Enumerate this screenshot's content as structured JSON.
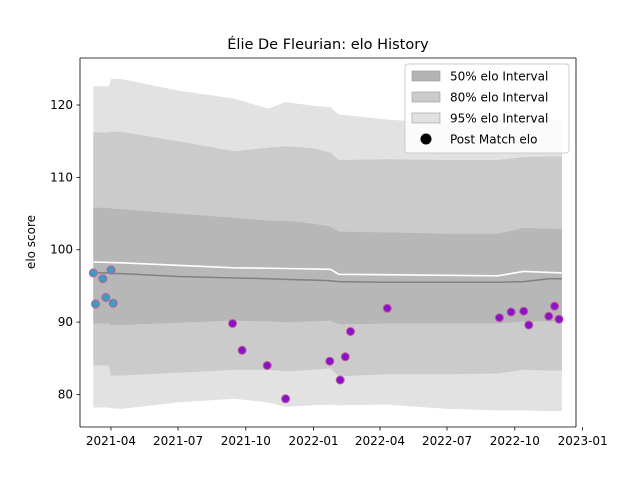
{
  "chart_data": {
    "type": "line",
    "title": "Élie De Fleurian: elo History",
    "xlabel": "",
    "ylabel": "elo score",
    "xlim": [
      "2021-02-18",
      "2022-12-23"
    ],
    "ylim": [
      75.5,
      126.5
    ],
    "x_ticks": [
      {
        "date": "2021-04-01",
        "label": "2021-04"
      },
      {
        "date": "2021-07-01",
        "label": "2021-07"
      },
      {
        "date": "2021-10-01",
        "label": "2021-10"
      },
      {
        "date": "2022-01-01",
        "label": "2022-01"
      },
      {
        "date": "2022-04-01",
        "label": "2022-04"
      },
      {
        "date": "2022-07-01",
        "label": "2022-07"
      },
      {
        "date": "2022-10-01",
        "label": "2022-10"
      },
      {
        "date": "2023-01-01",
        "label": "2023-01"
      }
    ],
    "y_ticks": [
      80,
      90,
      100,
      110,
      120
    ],
    "grid": false,
    "legend": {
      "placement": "top-right",
      "entries": [
        {
          "label": "50% elo Interval",
          "kind": "band",
          "color": "#b3b3b3"
        },
        {
          "label": "80% elo Interval",
          "kind": "band",
          "color": "#cbcbcb"
        },
        {
          "label": "95% elo Interval",
          "kind": "band",
          "color": "#e2e2e2"
        },
        {
          "label": "Post Match elo",
          "kind": "marker",
          "color": "#000000"
        }
      ]
    },
    "colors": {
      "band95": "#e2e2e2",
      "band80": "#cbcbcb",
      "band50": "#b7b7b7",
      "median": "#808080",
      "upper_line": "#ffffff",
      "points_early": "#3a9ec2",
      "points_late": "#8a12c8",
      "point_edge": "#c05a9c"
    },
    "bands": [
      {
        "date": "2021-03-08",
        "lo95": 78.2,
        "lo80": 84.0,
        "lo50": 89.8,
        "median": 96.8,
        "hi50": 105.8,
        "hi80": 116.2,
        "hi95": 122.6
      },
      {
        "date": "2021-03-29",
        "lo95": 78.2,
        "lo80": 84.0,
        "lo50": 89.8,
        "median": 96.8,
        "hi50": 105.8,
        "hi80": 116.2,
        "hi95": 122.6
      },
      {
        "date": "2021-04-01",
        "lo95": 78.1,
        "lo80": 82.6,
        "lo50": 89.6,
        "median": 96.7,
        "hi50": 105.7,
        "hi80": 116.3,
        "hi95": 123.6
      },
      {
        "date": "2021-04-15",
        "lo95": 78.0,
        "lo80": 82.6,
        "lo50": 89.6,
        "median": 96.7,
        "hi50": 105.6,
        "hi80": 116.3,
        "hi95": 123.6
      },
      {
        "date": "2021-07-01",
        "lo95": 78.9,
        "lo80": 83.0,
        "lo50": 89.9,
        "median": 96.3,
        "hi50": 105.0,
        "hi80": 115.0,
        "hi95": 122.0
      },
      {
        "date": "2021-09-15",
        "lo95": 79.4,
        "lo80": 83.4,
        "lo50": 90.2,
        "median": 96.1,
        "hi50": 104.4,
        "hi80": 113.6,
        "hi95": 120.9
      },
      {
        "date": "2021-10-31",
        "lo95": 78.9,
        "lo80": 83.4,
        "lo50": 90.1,
        "median": 96.0,
        "hi50": 104.0,
        "hi80": 114.1,
        "hi95": 119.5
      },
      {
        "date": "2021-11-24",
        "lo95": 78.3,
        "lo80": 83.2,
        "lo50": 90.0,
        "median": 95.9,
        "hi50": 104.0,
        "hi80": 114.3,
        "hi95": 120.4
      },
      {
        "date": "2022-01-01",
        "lo95": 78.5,
        "lo80": 83.4,
        "lo50": 90.1,
        "median": 95.8,
        "hi50": 103.6,
        "hi80": 114.0,
        "hi95": 119.9
      },
      {
        "date": "2022-01-24",
        "lo95": 78.6,
        "lo80": 83.6,
        "lo50": 90.2,
        "median": 95.7,
        "hi50": 103.2,
        "hi80": 113.4,
        "hi95": 119.7
      },
      {
        "date": "2022-02-04",
        "lo95": 78.5,
        "lo80": 82.5,
        "lo50": 89.7,
        "median": 95.6,
        "hi50": 102.5,
        "hi80": 112.4,
        "hi95": 118.7
      },
      {
        "date": "2022-04-10",
        "lo95": 78.6,
        "lo80": 82.8,
        "lo50": 89.8,
        "median": 95.5,
        "hi50": 102.4,
        "hi80": 112.5,
        "hi95": 118.0
      },
      {
        "date": "2022-07-01",
        "lo95": 78.0,
        "lo80": 82.8,
        "lo50": 89.8,
        "median": 95.5,
        "hi50": 102.2,
        "hi80": 112.4,
        "hi95": 117.4
      },
      {
        "date": "2022-09-08",
        "lo95": 77.8,
        "lo80": 82.9,
        "lo50": 89.8,
        "median": 95.5,
        "hi50": 102.2,
        "hi80": 112.4,
        "hi95": 117.4
      },
      {
        "date": "2022-10-13",
        "lo95": 77.8,
        "lo80": 83.4,
        "lo50": 90.1,
        "median": 95.6,
        "hi50": 103.0,
        "hi80": 112.8,
        "hi95": 118.1
      },
      {
        "date": "2022-11-16",
        "lo95": 77.7,
        "lo80": 83.3,
        "lo50": 90.1,
        "median": 96.0,
        "hi50": 102.9,
        "hi80": 112.9,
        "hi95": 118.0
      },
      {
        "date": "2022-12-04",
        "lo95": 77.7,
        "lo80": 83.3,
        "lo50": 90.1,
        "median": 96.0,
        "hi50": 102.9,
        "hi80": 112.9,
        "hi95": 118.0
      }
    ],
    "upper_line": [
      {
        "date": "2021-03-08",
        "y": 98.3
      },
      {
        "date": "2021-04-15",
        "y": 98.2
      },
      {
        "date": "2021-09-15",
        "y": 97.5
      },
      {
        "date": "2021-11-24",
        "y": 97.4
      },
      {
        "date": "2022-01-24",
        "y": 97.3
      },
      {
        "date": "2022-02-04",
        "y": 96.6
      },
      {
        "date": "2022-09-08",
        "y": 96.4
      },
      {
        "date": "2022-10-13",
        "y": 97.0
      },
      {
        "date": "2022-12-04",
        "y": 96.8
      }
    ],
    "series": [
      {
        "name": "Post Match elo",
        "points": [
          {
            "date": "2021-03-08",
            "y": 96.8,
            "group": "early"
          },
          {
            "date": "2021-03-11",
            "y": 92.5,
            "group": "early"
          },
          {
            "date": "2021-03-21",
            "y": 96.0,
            "group": "early"
          },
          {
            "date": "2021-03-25",
            "y": 93.4,
            "group": "early"
          },
          {
            "date": "2021-04-01",
            "y": 97.2,
            "group": "early"
          },
          {
            "date": "2021-04-04",
            "y": 92.6,
            "group": "early"
          },
          {
            "date": "2021-09-13",
            "y": 89.8,
            "group": "late"
          },
          {
            "date": "2021-09-26",
            "y": 86.1,
            "group": "late"
          },
          {
            "date": "2021-10-30",
            "y": 84.0,
            "group": "late"
          },
          {
            "date": "2021-11-24",
            "y": 79.4,
            "group": "late"
          },
          {
            "date": "2022-01-23",
            "y": 84.6,
            "group": "late"
          },
          {
            "date": "2022-02-06",
            "y": 82.0,
            "group": "late"
          },
          {
            "date": "2022-02-13",
            "y": 85.2,
            "group": "late"
          },
          {
            "date": "2022-02-20",
            "y": 88.7,
            "group": "late"
          },
          {
            "date": "2022-04-11",
            "y": 91.9,
            "group": "late"
          },
          {
            "date": "2022-09-10",
            "y": 90.6,
            "group": "late"
          },
          {
            "date": "2022-09-26",
            "y": 91.4,
            "group": "late"
          },
          {
            "date": "2022-10-13",
            "y": 91.5,
            "group": "late"
          },
          {
            "date": "2022-10-20",
            "y": 89.6,
            "group": "late"
          },
          {
            "date": "2022-11-16",
            "y": 90.8,
            "group": "late"
          },
          {
            "date": "2022-11-24",
            "y": 92.2,
            "group": "late"
          },
          {
            "date": "2022-11-30",
            "y": 90.4,
            "group": "late"
          }
        ]
      }
    ]
  }
}
